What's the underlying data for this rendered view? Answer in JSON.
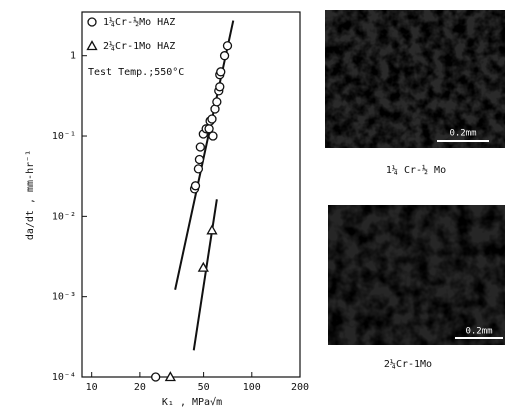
{
  "chart_data": {
    "type": "scatter",
    "y_label": "da/dt , mm-hr⁻¹",
    "x_label": "K₁ , MPa√m",
    "annotation": "Test Temp.;550°C",
    "xscale": "log",
    "yscale": "log",
    "xlim": [
      8.7,
      200
    ],
    "ylim": [
      0.0001,
      3.5
    ],
    "xticks": [
      10,
      20,
      50,
      100,
      200
    ],
    "yticks": [
      {
        "value": 0.0001,
        "label": "10⁻⁴"
      },
      {
        "value": 0.001,
        "label": "10⁻³"
      },
      {
        "value": 0.01,
        "label": "10⁻²"
      },
      {
        "value": 0.1,
        "label": "10⁻¹"
      },
      1
    ],
    "series": [
      {
        "name": "1¼Cr-½Mo HAZ",
        "marker": "circle",
        "color": "#111111",
        "x": [
          25.1,
          43.9,
          44.5,
          46.4,
          47.1,
          47.7,
          49.8,
          51.9,
          54.1,
          54.9,
          56.4,
          57.2,
          58.9,
          60.5,
          62.2,
          63.1,
          63.1,
          64,
          67.6,
          70.5
        ],
        "values": [
          0.0001,
          0.022,
          0.024,
          0.039,
          0.051,
          0.073,
          0.106,
          0.123,
          0.123,
          0.154,
          0.163,
          0.1,
          0.217,
          0.266,
          0.365,
          0.41,
          0.58,
          0.63,
          1.0,
          1.33
        ]
      },
      {
        "name": "2¼Cr-1Mo HAZ",
        "marker": "triangle",
        "color": "#111111",
        "x": [
          31,
          49.8,
          56.4
        ],
        "values": [
          0.0001,
          0.0023,
          0.0067
        ]
      }
    ],
    "trend_lines": [
      {
        "x": [
          33.2,
          76.6
        ],
        "values": [
          0.00122,
          2.74
        ]
      },
      {
        "x": [
          43.4,
          60.5
        ],
        "values": [
          0.000215,
          0.0163
        ]
      }
    ]
  },
  "micrographs": [
    {
      "caption": "1¼ Cr-½ Mo",
      "scale_label": "0.2mm"
    },
    {
      "caption": "2¼Cr-1Mo",
      "scale_label": "0.2mm"
    }
  ]
}
